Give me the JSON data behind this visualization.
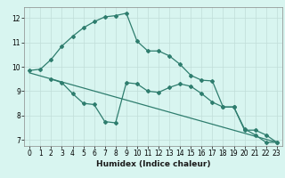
{
  "line1_x": [
    0,
    1,
    2,
    3,
    4,
    5,
    6,
    7,
    8,
    9,
    10,
    11,
    12,
    13,
    14,
    15,
    16,
    17,
    18,
    19,
    20,
    21,
    22,
    23
  ],
  "line1_y": [
    9.85,
    9.9,
    10.3,
    10.85,
    11.25,
    11.6,
    11.85,
    12.05,
    12.1,
    12.2,
    11.05,
    10.65,
    10.65,
    10.45,
    10.1,
    9.65,
    9.45,
    9.42,
    8.35,
    8.35,
    7.45,
    7.2,
    6.9,
    6.9
  ],
  "line2_x": [
    2,
    3,
    4,
    5,
    6,
    7,
    8,
    9,
    10,
    11,
    12,
    13,
    14,
    15,
    16,
    17,
    18,
    19,
    20,
    21,
    22,
    23
  ],
  "line2_y": [
    9.5,
    9.35,
    8.9,
    8.5,
    8.45,
    7.75,
    7.7,
    9.35,
    9.3,
    9.0,
    8.95,
    9.15,
    9.3,
    9.2,
    8.9,
    8.55,
    8.35,
    8.35,
    7.4,
    7.4,
    7.2,
    6.9
  ],
  "line3_x": [
    0,
    23
  ],
  "line3_y": [
    9.75,
    6.9
  ],
  "color": "#2e7d6e",
  "bg_color": "#d8f5f0",
  "grid_color": "#c0ddd8",
  "xlabel": "Humidex (Indice chaleur)",
  "xlim": [
    -0.5,
    23.5
  ],
  "ylim": [
    6.75,
    12.45
  ],
  "yticks": [
    7,
    8,
    9,
    10,
    11,
    12
  ],
  "xticks": [
    0,
    1,
    2,
    3,
    4,
    5,
    6,
    7,
    8,
    9,
    10,
    11,
    12,
    13,
    14,
    15,
    16,
    17,
    18,
    19,
    20,
    21,
    22,
    23
  ],
  "marker": "D",
  "markersize": 2.0,
  "linewidth": 0.9,
  "tick_fontsize": 5.5,
  "xlabel_fontsize": 6.5
}
